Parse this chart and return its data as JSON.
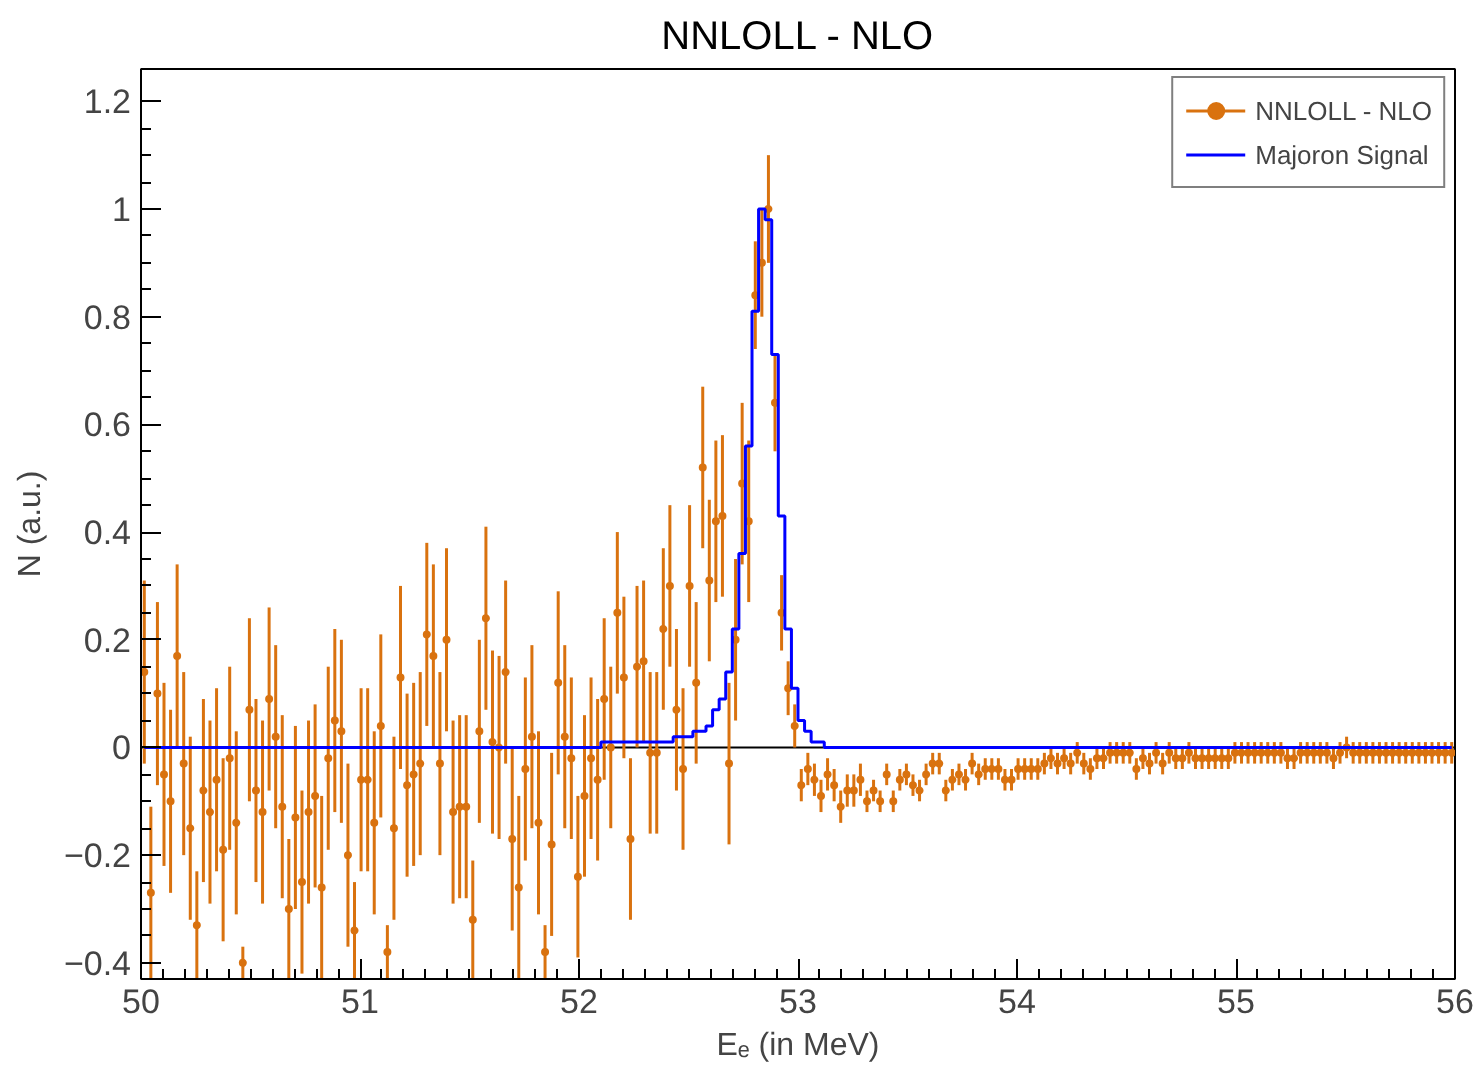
{
  "chart_data": {
    "type": "scatter",
    "title": "NNLOLL - NLO",
    "xlabel": "Eₑ (in MeV)",
    "ylabel": "N (a.u.)",
    "xlim": [
      50,
      56
    ],
    "ylim": [
      -0.43,
      1.26
    ],
    "xticks": [
      50,
      51,
      52,
      53,
      54,
      55,
      56
    ],
    "yticks": [
      {
        "value": -0.4,
        "label": "−0.4"
      },
      {
        "value": -0.2,
        "label": "−0.2"
      },
      0,
      0.2,
      0.4,
      0.6,
      0.8,
      1,
      1.2
    ],
    "grid": false,
    "legend": "top right",
    "ref_lines": [
      {
        "axis": "y",
        "value": 0,
        "color": "#000000"
      }
    ],
    "x": [
      50.015,
      50.045,
      50.075,
      50.105,
      50.135,
      50.165,
      50.195,
      50.225,
      50.255,
      50.285,
      50.315,
      50.345,
      50.375,
      50.405,
      50.435,
      50.465,
      50.495,
      50.525,
      50.555,
      50.585,
      50.615,
      50.645,
      50.675,
      50.705,
      50.735,
      50.765,
      50.795,
      50.825,
      50.855,
      50.885,
      50.915,
      50.945,
      50.975,
      51.005,
      51.035,
      51.065,
      51.095,
      51.125,
      51.155,
      51.185,
      51.215,
      51.245,
      51.275,
      51.305,
      51.335,
      51.365,
      51.395,
      51.425,
      51.455,
      51.485,
      51.515,
      51.545,
      51.575,
      51.605,
      51.635,
      51.665,
      51.695,
      51.725,
      51.755,
      51.785,
      51.815,
      51.845,
      51.875,
      51.905,
      51.935,
      51.965,
      51.995,
      52.025,
      52.055,
      52.085,
      52.115,
      52.145,
      52.175,
      52.205,
      52.235,
      52.265,
      52.295,
      52.325,
      52.355,
      52.385,
      52.415,
      52.445,
      52.475,
      52.505,
      52.535,
      52.565,
      52.595,
      52.625,
      52.655,
      52.685,
      52.715,
      52.745,
      52.775,
      52.805,
      52.835,
      52.865,
      52.895,
      52.925,
      52.955,
      52.985,
      53.015,
      53.045,
      53.075,
      53.105,
      53.135,
      53.165,
      53.195,
      53.225,
      53.255,
      53.285,
      53.315,
      53.345,
      53.375,
      53.405,
      53.435,
      53.465,
      53.495,
      53.525,
      53.555,
      53.585,
      53.615,
      53.645,
      53.675,
      53.705,
      53.735,
      53.765,
      53.795,
      53.825,
      53.855,
      53.885,
      53.915,
      53.945,
      53.975,
      54.005,
      54.035,
      54.065,
      54.095,
      54.125,
      54.155,
      54.185,
      54.215,
      54.245,
      54.275,
      54.305,
      54.335,
      54.365,
      54.395,
      54.425,
      54.455,
      54.485,
      54.515,
      54.545,
      54.575,
      54.605,
      54.635,
      54.665,
      54.695,
      54.725,
      54.755,
      54.785,
      54.815,
      54.845,
      54.875,
      54.905,
      54.935,
      54.965,
      54.995,
      55.025,
      55.055,
      55.085,
      55.115,
      55.145,
      55.175,
      55.205,
      55.235,
      55.265,
      55.295,
      55.325,
      55.355,
      55.385,
      55.415,
      55.445,
      55.475,
      55.505,
      55.535,
      55.565,
      55.595,
      55.625,
      55.655,
      55.685,
      55.715,
      55.745,
      55.775,
      55.805,
      55.835,
      55.865,
      55.895,
      55.925,
      55.955,
      55.985
    ],
    "series": [
      {
        "name": "NNLOLL - NLO",
        "marker": "circle",
        "color": "#d9720f",
        "values": [
          0.14,
          -0.27,
          0.1,
          -0.05,
          -0.1,
          0.17,
          -0.03,
          -0.15,
          -0.33,
          -0.08,
          -0.12,
          -0.06,
          -0.19,
          -0.02,
          -0.14,
          -0.4,
          0.07,
          -0.08,
          -0.12,
          0.09,
          0.02,
          -0.11,
          -0.3,
          -0.13,
          -0.25,
          -0.12,
          -0.09,
          -0.26,
          -0.02,
          0.05,
          0.03,
          -0.2,
          -0.34,
          -0.06,
          -0.06,
          -0.14,
          0.04,
          -0.38,
          -0.15,
          0.13,
          -0.07,
          -0.05,
          -0.03,
          0.21,
          0.17,
          -0.03,
          0.2,
          -0.12,
          -0.11,
          -0.11,
          -0.32,
          0.03,
          0.24,
          0.01,
          0.0,
          0.14,
          -0.17,
          -0.26,
          -0.04,
          0.02,
          -0.14,
          -0.38,
          -0.18,
          0.12,
          0.02,
          -0.02,
          -0.24,
          -0.09,
          -0.02,
          -0.06,
          0.09,
          0.0,
          0.25,
          0.13,
          -0.17,
          0.15,
          0.16,
          -0.01,
          -0.01,
          0.22,
          0.3,
          0.07,
          -0.04,
          0.3,
          0.12,
          0.52,
          0.31,
          0.42,
          0.43,
          -0.03,
          0.2,
          0.49,
          0.42,
          0.84,
          0.9,
          1.0,
          0.64,
          0.25,
          0.11,
          0.04,
          -0.07,
          -0.04,
          -0.06,
          -0.09,
          -0.05,
          -0.07,
          -0.11,
          -0.08,
          -0.08,
          -0.06,
          -0.1,
          -0.08,
          -0.1,
          -0.05,
          -0.1,
          -0.06,
          -0.05,
          -0.07,
          -0.08,
          -0.05,
          -0.03,
          -0.03,
          -0.08,
          -0.06,
          -0.05,
          -0.06,
          -0.03,
          -0.05,
          -0.04,
          -0.04,
          -0.04,
          -0.06,
          -0.06,
          -0.04,
          -0.04,
          -0.04,
          -0.04,
          -0.03,
          -0.02,
          -0.03,
          -0.02,
          -0.03,
          -0.01,
          -0.03,
          -0.04,
          -0.02,
          -0.02,
          -0.01,
          -0.01,
          -0.01,
          -0.01,
          -0.04,
          -0.02,
          -0.03,
          -0.01,
          -0.03,
          -0.01,
          -0.02,
          -0.02,
          -0.01,
          -0.02,
          -0.02,
          -0.02,
          -0.02,
          -0.02,
          -0.02,
          -0.01,
          -0.01,
          -0.01,
          -0.01,
          -0.01,
          -0.01,
          -0.01,
          -0.01,
          -0.02,
          -0.02,
          -0.01,
          -0.01,
          -0.01,
          -0.01,
          -0.01,
          -0.02,
          -0.01,
          0.0,
          -0.01,
          -0.01,
          -0.01,
          -0.01,
          -0.01,
          -0.01,
          -0.01,
          -0.01,
          -0.01,
          -0.01,
          -0.01,
          -0.01,
          -0.01,
          -0.01,
          -0.01,
          -0.01
        ],
        "errors": [
          0.17,
          0.16,
          0.17,
          0.17,
          0.17,
          0.17,
          0.17,
          0.17,
          0.1,
          0.17,
          0.17,
          0.17,
          0.17,
          0.17,
          0.17,
          0.03,
          0.17,
          0.17,
          0.17,
          0.17,
          0.17,
          0.17,
          0.13,
          0.17,
          0.17,
          0.17,
          0.17,
          0.17,
          0.17,
          0.17,
          0.17,
          0.17,
          0.09,
          0.17,
          0.17,
          0.17,
          0.17,
          0.05,
          0.17,
          0.17,
          0.17,
          0.17,
          0.17,
          0.17,
          0.17,
          0.17,
          0.17,
          0.17,
          0.17,
          0.17,
          0.11,
          0.17,
          0.17,
          0.17,
          0.17,
          0.17,
          0.17,
          0.17,
          0.17,
          0.17,
          0.17,
          0.05,
          0.17,
          0.17,
          0.17,
          0.15,
          0.15,
          0.15,
          0.15,
          0.15,
          0.15,
          0.15,
          0.15,
          0.15,
          0.15,
          0.15,
          0.15,
          0.15,
          0.15,
          0.15,
          0.15,
          0.15,
          0.15,
          0.15,
          0.15,
          0.15,
          0.15,
          0.15,
          0.15,
          0.15,
          0.15,
          0.15,
          0.15,
          0.1,
          0.1,
          0.1,
          0.09,
          0.07,
          0.05,
          0.04,
          0.03,
          0.03,
          0.03,
          0.03,
          0.03,
          0.03,
          0.03,
          0.03,
          0.03,
          0.03,
          0.02,
          0.02,
          0.02,
          0.02,
          0.02,
          0.02,
          0.02,
          0.02,
          0.02,
          0.02,
          0.02,
          0.02,
          0.02,
          0.02,
          0.02,
          0.02,
          0.02,
          0.02,
          0.02,
          0.02,
          0.02,
          0.02,
          0.02,
          0.02,
          0.02,
          0.02,
          0.02,
          0.02,
          0.02,
          0.02,
          0.02,
          0.02,
          0.02,
          0.02,
          0.02,
          0.02,
          0.02,
          0.02,
          0.02,
          0.02,
          0.02,
          0.02,
          0.02,
          0.02,
          0.02,
          0.02,
          0.02,
          0.02,
          0.02,
          0.02,
          0.02,
          0.02,
          0.02,
          0.02,
          0.02,
          0.02,
          0.02,
          0.02,
          0.02,
          0.02,
          0.02,
          0.02,
          0.02,
          0.02,
          0.02,
          0.02,
          0.02,
          0.02,
          0.02,
          0.02,
          0.02,
          0.02,
          0.02,
          0.02,
          0.02,
          0.02,
          0.02,
          0.02,
          0.02,
          0.02,
          0.02,
          0.02,
          0.02,
          0.02,
          0.02,
          0.02,
          0.02,
          0.02,
          0.02,
          0.02
        ]
      },
      {
        "name": "Majoron Signal",
        "type": "step",
        "color": "#0000ff",
        "values": [
          0,
          0,
          0,
          0,
          0,
          0,
          0,
          0,
          0,
          0,
          0,
          0,
          0,
          0,
          0,
          0,
          0,
          0,
          0,
          0,
          0,
          0,
          0,
          0,
          0,
          0,
          0,
          0,
          0,
          0,
          0,
          0,
          0,
          0,
          0,
          0,
          0,
          0,
          0,
          0,
          0,
          0,
          0,
          0,
          0,
          0,
          0,
          0,
          0,
          0,
          0,
          0,
          0,
          0,
          0,
          0,
          0,
          0,
          0,
          0,
          0,
          0,
          0,
          0,
          0,
          0,
          0,
          0,
          0,
          0,
          0.01,
          0.01,
          0.01,
          0.01,
          0.01,
          0.01,
          0.01,
          0.01,
          0.01,
          0.01,
          0.01,
          0.02,
          0.02,
          0.02,
          0.03,
          0.03,
          0.04,
          0.07,
          0.09,
          0.14,
          0.22,
          0.36,
          0.56,
          0.81,
          1.0,
          0.98,
          0.73,
          0.43,
          0.22,
          0.11,
          0.05,
          0.03,
          0.01,
          0.01,
          0,
          0,
          0,
          0,
          0,
          0,
          0,
          0,
          0,
          0,
          0,
          0,
          0,
          0,
          0,
          0,
          0,
          0,
          0,
          0,
          0,
          0,
          0,
          0,
          0,
          0,
          0,
          0,
          0,
          0,
          0,
          0,
          0,
          0,
          0,
          0,
          0,
          0,
          0,
          0,
          0,
          0,
          0,
          0,
          0,
          0,
          0,
          0,
          0,
          0,
          0,
          0,
          0,
          0,
          0,
          0,
          0,
          0,
          0,
          0,
          0,
          0,
          0,
          0,
          0,
          0,
          0,
          0,
          0,
          0,
          0,
          0,
          0,
          0,
          0,
          0,
          0,
          0,
          0,
          0,
          0,
          0,
          0,
          0,
          0,
          0,
          0,
          0,
          0,
          0,
          0,
          0,
          0,
          0,
          0,
          0
        ]
      }
    ]
  }
}
